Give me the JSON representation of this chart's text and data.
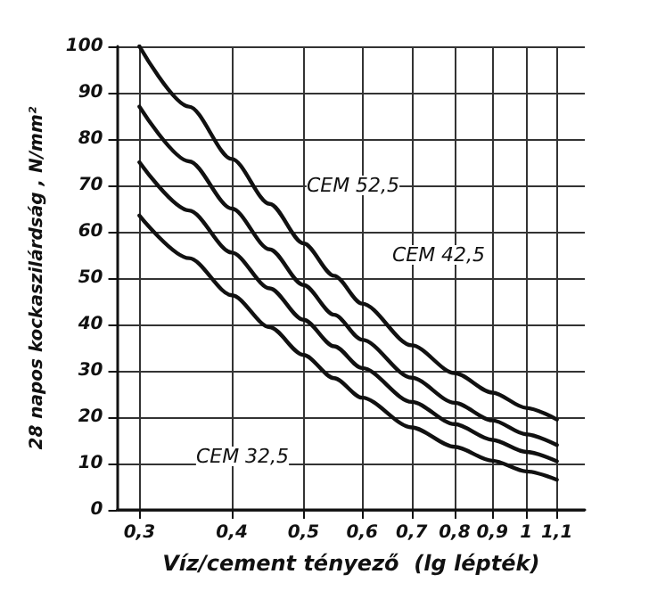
{
  "chart_data": {
    "type": "line",
    "xlabel": "Víz/cement tényező  (lg lépték)",
    "ylabel": "28 napos kockaszilárdság , N/mm²",
    "log": "x",
    "grid": true,
    "marker": "none",
    "line_style": "solid",
    "x": [
      0.3,
      0.35,
      0.4,
      0.45,
      0.5,
      0.55,
      0.6,
      0.7,
      0.8,
      0.9,
      1.0,
      1.1
    ],
    "series": [
      {
        "color": "#111111",
        "values": [
          100,
          87,
          75.7,
          66,
          57.5,
          50.5,
          44.5,
          35.5,
          29.5,
          25.3,
          22,
          19.5
        ]
      },
      {
        "color": "#111111",
        "values": [
          87,
          75.2,
          65,
          56.2,
          48.5,
          42.1,
          36.7,
          28.5,
          23.1,
          19.3,
          16.3,
          14
        ]
      },
      {
        "color": "#111111",
        "values": [
          75,
          64.6,
          55.5,
          47.8,
          41,
          35.3,
          30.6,
          23.3,
          18.5,
          15.1,
          12.5,
          10.5
        ]
      },
      {
        "color": "#111111",
        "values": [
          63.5,
          54.3,
          46.3,
          39.4,
          33.4,
          28.4,
          24.2,
          17.8,
          13.6,
          10.6,
          8.3,
          6.5
        ]
      }
    ],
    "xlim": [
      0.28,
      1.2
    ],
    "xticks": [
      {
        "value": 0.3,
        "label": "0,3"
      },
      {
        "value": 0.4,
        "label": "0,4"
      },
      {
        "value": 0.5,
        "label": "0,5"
      },
      {
        "value": 0.6,
        "label": "0,6"
      },
      {
        "value": 0.7,
        "label": "0,7"
      },
      {
        "value": 0.8,
        "label": "0,8"
      },
      {
        "value": 0.9,
        "label": "0,9"
      },
      1,
      {
        "value": 1.1,
        "label": "1,1"
      }
    ],
    "ylim": [
      0,
      100
    ],
    "yticks": [
      0,
      10,
      20,
      30,
      40,
      50,
      60,
      70,
      80,
      90,
      100
    ],
    "annotations": [
      "CEM 52,5",
      "CEM 42,5",
      "CEM 32,5"
    ]
  }
}
